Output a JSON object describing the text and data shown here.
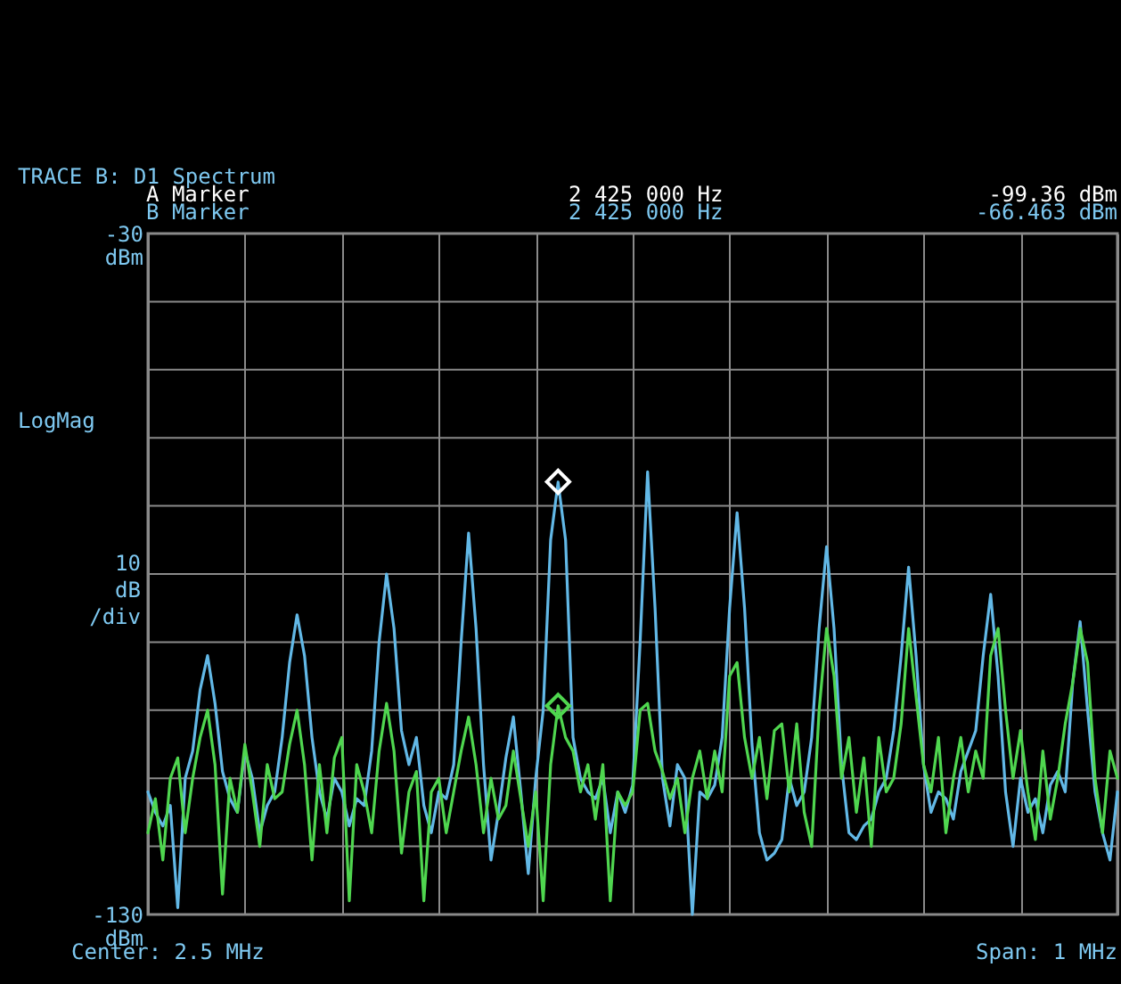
{
  "chart_data": {
    "type": "line",
    "title": "TRACE B: D1 Spectrum",
    "ylabel": "10 dB /div",
    "annotations": [
      "A Marker",
      "2 425 000 Hz",
      "-99.36  dBm",
      "B Marker",
      "2 425 000 Hz",
      "-66.463 dBm",
      "LogMag",
      "Center: 2.5 MHz",
      "Span: 1 MHz"
    ],
    "categories": [
      null,
      null,
      null,
      null,
      null,
      null,
      null,
      null,
      null,
      null,
      null,
      null,
      null,
      null,
      null,
      null,
      null,
      null,
      null,
      null,
      null,
      null,
      null,
      null,
      null,
      null,
      null,
      null,
      null,
      null,
      null,
      null,
      null,
      null,
      null,
      null,
      null,
      null,
      null,
      null,
      null,
      null,
      null,
      null,
      null,
      null,
      null,
      null,
      null,
      null,
      null,
      null,
      null,
      null,
      null,
      null,
      null,
      null,
      null,
      null,
      null,
      null,
      null,
      null,
      null,
      null,
      null,
      null,
      null,
      null,
      null,
      null,
      null,
      null,
      null,
      null,
      null,
      null,
      null,
      null,
      null,
      null,
      null,
      null,
      null,
      null,
      null,
      null,
      null,
      null,
      null,
      null,
      null,
      null,
      null,
      null,
      null,
      null,
      null,
      null,
      null,
      null,
      null,
      null,
      null,
      null,
      null,
      null,
      null,
      null,
      null,
      null,
      null,
      null,
      null,
      null,
      null,
      null,
      null,
      null,
      null,
      null,
      null,
      null,
      null,
      null,
      null,
      null,
      null,
      null,
      null
    ],
    "ylim": [
      -130,
      -30
    ],
    "yticks": [
      {
        "value": -130,
        "label": "-130 dBm"
      },
      {
        "value": -120,
        "label": null
      },
      {
        "value": -110,
        "label": null
      },
      {
        "value": -100,
        "label": null
      },
      {
        "value": -90,
        "label": null
      },
      {
        "value": -80,
        "label": null
      },
      {
        "value": -70,
        "label": null
      },
      {
        "value": -60,
        "label": null
      },
      {
        "value": -50,
        "label": null
      },
      {
        "value": -40,
        "label": null
      },
      {
        "value": -30,
        "label": "-30 dBm"
      }
    ],
    "tick_labels": "y",
    "grid": true,
    "line_style": "solid",
    "marker": "none",
    "series": [
      {
        "color": "#62b8e6",
        "values": [
          -112,
          -115,
          -117,
          -114,
          -129,
          -110,
          -106,
          -97,
          -92,
          -99,
          -109,
          -113,
          -115,
          -106,
          -110,
          -118,
          -114,
          -112,
          -104,
          -93,
          -86,
          -92,
          -104,
          -112,
          -116,
          -110,
          -112,
          -117,
          -113,
          -114,
          -106,
          -90,
          -80,
          -88,
          -103,
          -108,
          -104,
          -114,
          -118,
          -112,
          -113,
          -108,
          -90,
          -74,
          -88,
          -108,
          -122,
          -115,
          -107,
          -101,
          -112,
          -124,
          -110,
          -100,
          -75,
          -66.5,
          -75,
          -104,
          -110,
          -112,
          -113,
          -110,
          -118,
          -112,
          -115,
          -111,
          -90,
          -65,
          -85,
          -110,
          -117,
          -108,
          -110,
          -130,
          -112,
          -113,
          -111,
          -104,
          -85,
          -71,
          -85,
          -105,
          -118,
          -122,
          -121,
          -119,
          -110,
          -114,
          -112,
          -104,
          -88,
          -76,
          -88,
          -108,
          -118,
          -119,
          -117,
          -116,
          -112,
          -110,
          -103,
          -92,
          -79,
          -92,
          -108,
          -115,
          -112,
          -113,
          -116,
          -109,
          -106,
          -103,
          -92,
          -83,
          -95,
          -112,
          -120,
          -110,
          -115,
          -113,
          -118,
          -111,
          -109,
          -112,
          -96,
          -87,
          -100,
          -112,
          -118,
          -122,
          -112
        ]
      },
      {
        "color": "#4fd64f",
        "values": [
          -118,
          -113,
          -122,
          -110,
          -107,
          -118,
          -110,
          -104,
          -100,
          -108,
          -127,
          -110,
          -115,
          -105,
          -112,
          -120,
          -108,
          -113,
          -112,
          -105,
          -100,
          -108,
          -122,
          -108,
          -118,
          -107,
          -104,
          -128,
          -108,
          -112,
          -118,
          -106,
          -99,
          -106,
          -121,
          -112,
          -109,
          -128,
          -112,
          -110,
          -118,
          -112,
          -106,
          -101,
          -108,
          -118,
          -110,
          -116,
          -114,
          -106,
          -113,
          -120,
          -112,
          -128,
          -108,
          -99.36,
          -104,
          -106,
          -112,
          -108,
          -116,
          -108,
          -128,
          -112,
          -114,
          -112,
          -100,
          -99,
          -106,
          -109,
          -113,
          -110,
          -118,
          -110,
          -106,
          -113,
          -106,
          -112,
          -95,
          -93,
          -104,
          -110,
          -104,
          -113,
          -103,
          -102,
          -112,
          -102,
          -115,
          -120,
          -100,
          -88,
          -95,
          -110,
          -104,
          -115,
          -107,
          -120,
          -104,
          -112,
          -110,
          -102,
          -88,
          -98,
          -108,
          -112,
          -104,
          -118,
          -110,
          -104,
          -112,
          -106,
          -110,
          -92,
          -88,
          -100,
          -110,
          -103,
          -112,
          -119,
          -106,
          -116,
          -110,
          -102,
          -96,
          -88,
          -93,
          -110,
          -118,
          -106,
          -110
        ]
      },
      {
        "type": "scatter",
        "marker": "diamond",
        "color": "#ffffff",
        "values": [
          null,
          null,
          null,
          null,
          null,
          null,
          null,
          null,
          null,
          null,
          null,
          null,
          null,
          null,
          null,
          null,
          null,
          null,
          null,
          null,
          null,
          null,
          null,
          null,
          null,
          null,
          null,
          null,
          null,
          null,
          null,
          null,
          null,
          null,
          null,
          null,
          null,
          null,
          null,
          null,
          null,
          null,
          null,
          null,
          null,
          null,
          null,
          null,
          null,
          null,
          null,
          null,
          null,
          null,
          null,
          -66.463,
          null,
          null,
          null,
          null,
          null,
          null,
          null,
          null,
          null,
          null,
          null,
          null,
          null,
          null,
          null,
          null,
          null,
          null,
          null,
          null,
          null,
          null,
          null,
          null,
          null,
          null,
          null,
          null,
          null,
          null,
          null,
          null,
          null,
          null,
          null,
          null,
          null,
          null,
          null,
          null,
          null,
          null,
          null,
          null,
          null,
          null,
          null,
          null,
          null,
          null,
          null,
          null,
          null,
          null,
          null,
          null,
          null,
          null,
          null,
          null,
          null,
          null,
          null,
          null,
          null,
          null,
          null,
          null,
          null,
          null,
          null,
          null,
          null,
          null,
          null
        ]
      },
      {
        "type": "scatter",
        "marker": "diamond",
        "color": "#4fd64f",
        "values": [
          null,
          null,
          null,
          null,
          null,
          null,
          null,
          null,
          null,
          null,
          null,
          null,
          null,
          null,
          null,
          null,
          null,
          null,
          null,
          null,
          null,
          null,
          null,
          null,
          null,
          null,
          null,
          null,
          null,
          null,
          null,
          null,
          null,
          null,
          null,
          null,
          null,
          null,
          null,
          null,
          null,
          null,
          null,
          null,
          null,
          null,
          null,
          null,
          null,
          null,
          null,
          null,
          null,
          null,
          null,
          -99.36,
          null,
          null,
          null,
          null,
          null,
          null,
          null,
          null,
          null,
          null,
          null,
          null,
          null,
          null,
          null,
          null,
          null,
          null,
          null,
          null,
          null,
          null,
          null,
          null,
          null,
          null,
          null,
          null,
          null,
          null,
          null,
          null,
          null,
          null,
          null,
          null,
          null,
          null,
          null,
          null,
          null,
          null,
          null,
          null,
          null,
          null,
          null,
          null,
          null,
          null,
          null,
          null,
          null,
          null,
          null,
          null,
          null,
          null,
          null,
          null,
          null,
          null,
          null,
          null,
          null,
          null,
          null,
          null,
          null,
          null,
          null,
          null,
          null,
          null,
          null
        ]
      }
    ]
  }
}
